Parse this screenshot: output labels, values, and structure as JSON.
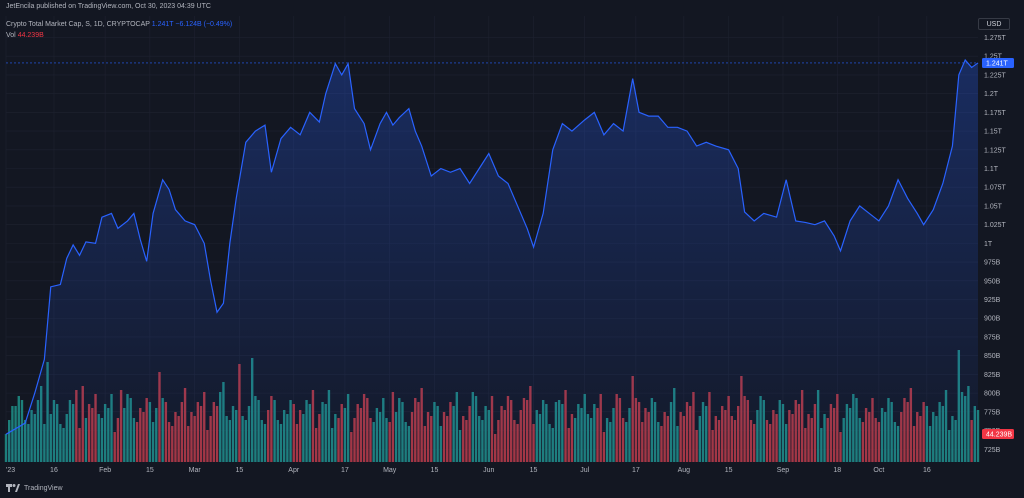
{
  "header": {
    "published": "JetEncila published on TradingView.com, Oct 30, 2023 04:39 UTC"
  },
  "legend": {
    "symbol": "Crypto Total Market Cap, S, 1D, CRYPTOCAP",
    "last": "1.241T",
    "change": "−6.124B (−0.49%)",
    "vol_label": "Vol",
    "vol_value": "44.239B"
  },
  "axis": {
    "currency": "USD"
  },
  "footer": {
    "brand": "TradingView"
  },
  "colors": {
    "background": "#131722",
    "line": "#2962ff",
    "vol_up": "#1d7f7a",
    "vol_down": "#a7353f",
    "grid": "#1e2230",
    "tick_text": "#b2b5be"
  },
  "chart_data": {
    "type": "line",
    "title": "Crypto Total Market Cap, S, 1D, CRYPTOCAP",
    "price_axis": {
      "ticks": [
        "1.275T",
        "1.25T",
        "1.225T",
        "1.2T",
        "1.175T",
        "1.15T",
        "1.125T",
        "1.1T",
        "1.075T",
        "1.05T",
        "1.025T",
        "1T",
        "975B",
        "950B",
        "925B",
        "900B",
        "875B",
        "850B",
        "825B",
        "800B",
        "775B",
        "750B",
        "725B"
      ],
      "range_billions": [
        708,
        1285
      ],
      "last_price_label": "1.241T",
      "last_price_billions": 1241,
      "volume_label": "44.239B"
    },
    "time_axis": {
      "ticks": [
        "'23",
        "16",
        "Feb",
        "15",
        "Mar",
        "15",
        "Apr",
        "17",
        "May",
        "15",
        "Jun",
        "15",
        "Jul",
        "17",
        "Aug",
        "15",
        "Sep",
        "18",
        "Oct",
        "16"
      ],
      "tick_days": [
        0,
        15,
        31,
        45,
        59,
        73,
        90,
        106,
        120,
        134,
        151,
        165,
        181,
        197,
        212,
        226,
        243,
        260,
        273,
        288
      ]
    },
    "series": [
      {
        "x_day": 0,
        "price_billions": 745
      },
      {
        "x_day": 6,
        "price_billions": 760
      },
      {
        "x_day": 9,
        "price_billions": 800
      },
      {
        "x_day": 12,
        "price_billions": 845
      },
      {
        "x_day": 14,
        "price_billions": 942
      },
      {
        "x_day": 17,
        "price_billions": 945
      },
      {
        "x_day": 19,
        "price_billions": 980
      },
      {
        "x_day": 21,
        "price_billions": 998
      },
      {
        "x_day": 23,
        "price_billions": 984
      },
      {
        "x_day": 25,
        "price_billions": 1002
      },
      {
        "x_day": 28,
        "price_billions": 1000
      },
      {
        "x_day": 30,
        "price_billions": 1035
      },
      {
        "x_day": 33,
        "price_billions": 1040
      },
      {
        "x_day": 35,
        "price_billions": 1020
      },
      {
        "x_day": 38,
        "price_billions": 1030
      },
      {
        "x_day": 40,
        "price_billions": 1040
      },
      {
        "x_day": 42,
        "price_billions": 1005
      },
      {
        "x_day": 44,
        "price_billions": 976
      },
      {
        "x_day": 46,
        "price_billions": 1040
      },
      {
        "x_day": 49,
        "price_billions": 1085
      },
      {
        "x_day": 51,
        "price_billions": 1072
      },
      {
        "x_day": 53,
        "price_billions": 1045
      },
      {
        "x_day": 56,
        "price_billions": 1030
      },
      {
        "x_day": 59,
        "price_billions": 1025
      },
      {
        "x_day": 62,
        "price_billions": 1000
      },
      {
        "x_day": 64,
        "price_billions": 950
      },
      {
        "x_day": 66,
        "price_billions": 908
      },
      {
        "x_day": 68,
        "price_billions": 920
      },
      {
        "x_day": 70,
        "price_billions": 1000
      },
      {
        "x_day": 72,
        "price_billions": 1060
      },
      {
        "x_day": 75,
        "price_billions": 1135
      },
      {
        "x_day": 78,
        "price_billions": 1150
      },
      {
        "x_day": 81,
        "price_billions": 1158
      },
      {
        "x_day": 83,
        "price_billions": 1095
      },
      {
        "x_day": 86,
        "price_billions": 1140
      },
      {
        "x_day": 89,
        "price_billions": 1155
      },
      {
        "x_day": 92,
        "price_billions": 1145
      },
      {
        "x_day": 95,
        "price_billions": 1175
      },
      {
        "x_day": 98,
        "price_billions": 1162
      },
      {
        "x_day": 100,
        "price_billions": 1200
      },
      {
        "x_day": 103,
        "price_billions": 1240
      },
      {
        "x_day": 105,
        "price_billions": 1225
      },
      {
        "x_day": 107,
        "price_billions": 1240
      },
      {
        "x_day": 109,
        "price_billions": 1180
      },
      {
        "x_day": 112,
        "price_billions": 1160
      },
      {
        "x_day": 114,
        "price_billions": 1125
      },
      {
        "x_day": 117,
        "price_billions": 1160
      },
      {
        "x_day": 119,
        "price_billions": 1175
      },
      {
        "x_day": 121,
        "price_billions": 1158
      },
      {
        "x_day": 123,
        "price_billions": 1168
      },
      {
        "x_day": 126,
        "price_billions": 1180
      },
      {
        "x_day": 128,
        "price_billions": 1150
      },
      {
        "x_day": 130,
        "price_billions": 1130
      },
      {
        "x_day": 133,
        "price_billions": 1090
      },
      {
        "x_day": 136,
        "price_billions": 1100
      },
      {
        "x_day": 139,
        "price_billions": 1095
      },
      {
        "x_day": 142,
        "price_billions": 1100
      },
      {
        "x_day": 145,
        "price_billions": 1080
      },
      {
        "x_day": 148,
        "price_billions": 1100
      },
      {
        "x_day": 151,
        "price_billions": 1120
      },
      {
        "x_day": 154,
        "price_billions": 1090
      },
      {
        "x_day": 157,
        "price_billions": 1080
      },
      {
        "x_day": 160,
        "price_billions": 1050
      },
      {
        "x_day": 163,
        "price_billions": 1020
      },
      {
        "x_day": 165,
        "price_billions": 995
      },
      {
        "x_day": 168,
        "price_billions": 1040
      },
      {
        "x_day": 171,
        "price_billions": 1125
      },
      {
        "x_day": 174,
        "price_billions": 1160
      },
      {
        "x_day": 177,
        "price_billions": 1150
      },
      {
        "x_day": 181,
        "price_billions": 1165
      },
      {
        "x_day": 184,
        "price_billions": 1175
      },
      {
        "x_day": 187,
        "price_billions": 1145
      },
      {
        "x_day": 190,
        "price_billions": 1160
      },
      {
        "x_day": 193,
        "price_billions": 1150
      },
      {
        "x_day": 196,
        "price_billions": 1220
      },
      {
        "x_day": 198,
        "price_billions": 1175
      },
      {
        "x_day": 201,
        "price_billions": 1170
      },
      {
        "x_day": 204,
        "price_billions": 1170
      },
      {
        "x_day": 207,
        "price_billions": 1155
      },
      {
        "x_day": 210,
        "price_billions": 1155
      },
      {
        "x_day": 213,
        "price_billions": 1150
      },
      {
        "x_day": 216,
        "price_billions": 1130
      },
      {
        "x_day": 219,
        "price_billions": 1135
      },
      {
        "x_day": 222,
        "price_billions": 1130
      },
      {
        "x_day": 226,
        "price_billions": 1125
      },
      {
        "x_day": 229,
        "price_billions": 1100
      },
      {
        "x_day": 231,
        "price_billions": 1042
      },
      {
        "x_day": 234,
        "price_billions": 1030
      },
      {
        "x_day": 237,
        "price_billions": 1040
      },
      {
        "x_day": 241,
        "price_billions": 1035
      },
      {
        "x_day": 244,
        "price_billions": 1085
      },
      {
        "x_day": 247,
        "price_billions": 1030
      },
      {
        "x_day": 250,
        "price_billions": 1028
      },
      {
        "x_day": 253,
        "price_billions": 1025
      },
      {
        "x_day": 256,
        "price_billions": 1030
      },
      {
        "x_day": 259,
        "price_billions": 1010
      },
      {
        "x_day": 261,
        "price_billions": 990
      },
      {
        "x_day": 264,
        "price_billions": 1030
      },
      {
        "x_day": 267,
        "price_billions": 1050
      },
      {
        "x_day": 270,
        "price_billions": 1040
      },
      {
        "x_day": 273,
        "price_billions": 1030
      },
      {
        "x_day": 276,
        "price_billions": 1050
      },
      {
        "x_day": 279,
        "price_billions": 1085
      },
      {
        "x_day": 282,
        "price_billions": 1060
      },
      {
        "x_day": 285,
        "price_billions": 1040
      },
      {
        "x_day": 287,
        "price_billions": 1025
      },
      {
        "x_day": 290,
        "price_billions": 1045
      },
      {
        "x_day": 293,
        "price_billions": 1080
      },
      {
        "x_day": 296,
        "price_billions": 1130
      },
      {
        "x_day": 298,
        "price_billions": 1225
      },
      {
        "x_day": 300,
        "price_billions": 1245
      },
      {
        "x_day": 302,
        "price_billions": 1235
      },
      {
        "x_day": 304,
        "price_billions": 1241
      }
    ],
    "volume_series": [
      {
        "x_day": 3,
        "volume_billions": 28,
        "direction": "up"
      },
      {
        "x_day": 13,
        "volume_billions": 50,
        "direction": "up"
      },
      {
        "x_day": 24,
        "volume_billions": 38,
        "direction": "down"
      },
      {
        "x_day": 36,
        "volume_billions": 36,
        "direction": "down"
      },
      {
        "x_day": 48,
        "volume_billions": 45,
        "direction": "down"
      },
      {
        "x_day": 68,
        "volume_billions": 40,
        "direction": "up"
      },
      {
        "x_day": 73,
        "volume_billions": 49,
        "direction": "down"
      },
      {
        "x_day": 77,
        "volume_billions": 52,
        "direction": "up"
      },
      {
        "x_day": 99,
        "volume_billions": 30,
        "direction": "up"
      },
      {
        "x_day": 121,
        "volume_billions": 35,
        "direction": "down"
      },
      {
        "x_day": 162,
        "volume_billions": 32,
        "direction": "down"
      },
      {
        "x_day": 172,
        "volume_billions": 30,
        "direction": "up"
      },
      {
        "x_day": 196,
        "volume_billions": 43,
        "direction": "down"
      },
      {
        "x_day": 230,
        "volume_billions": 43,
        "direction": "down"
      },
      {
        "x_day": 294,
        "volume_billions": 36,
        "direction": "up"
      },
      {
        "x_day": 298,
        "volume_billions": 56,
        "direction": "up"
      },
      {
        "x_day": 301,
        "volume_billions": 38,
        "direction": "up"
      }
    ]
  }
}
